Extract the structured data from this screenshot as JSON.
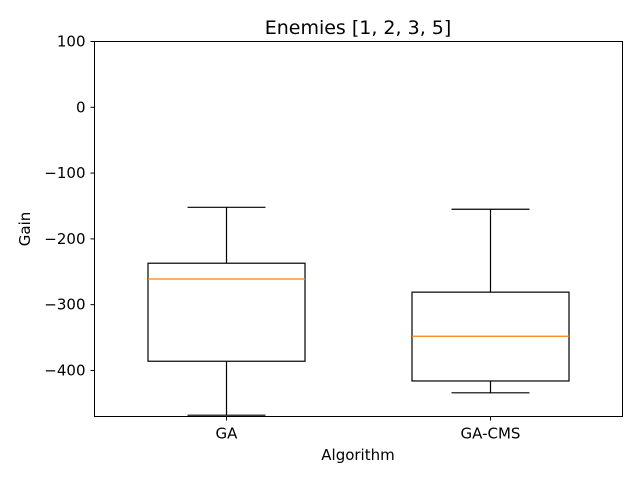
{
  "chart_data": {
    "type": "box",
    "title": "Enemies [1, 2, 3, 5]",
    "xlabel": "Algorithm",
    "ylabel": "Gain",
    "categories": [
      "GA",
      "GA-CMS"
    ],
    "ylim": [
      -470,
      100
    ],
    "yticks": [
      {
        "value": 100,
        "label": "100"
      },
      {
        "value": 0,
        "label": "0"
      },
      {
        "value": -100,
        "label": "−100"
      },
      {
        "value": -200,
        "label": "−200"
      },
      {
        "value": -300,
        "label": "−300"
      },
      {
        "value": -400,
        "label": "−400"
      }
    ],
    "boxes": [
      {
        "name": "GA",
        "whisker_low": -468,
        "q1": -386,
        "median": -261,
        "q3": -237,
        "whisker_high": -152
      },
      {
        "name": "GA-CMS",
        "whisker_low": -434,
        "q1": -416,
        "median": -348,
        "q3": -281,
        "whisker_high": -155
      }
    ],
    "colors": {
      "box": "#000000",
      "median": "#ff7f0e"
    },
    "grid": false,
    "legend": "none"
  }
}
